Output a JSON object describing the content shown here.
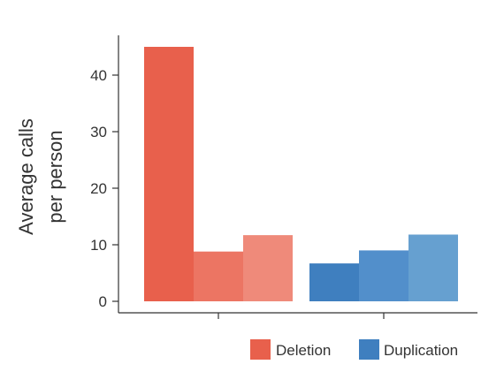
{
  "chart_data": {
    "type": "bar",
    "title": "",
    "xlabel": "",
    "ylabel_lines": [
      "Average calls",
      "per person"
    ],
    "ylim": [
      0,
      45
    ],
    "yticks": [
      0,
      10,
      20,
      30,
      40
    ],
    "grid": false,
    "legend_position": "bottom-right",
    "groups": [
      {
        "name": "Deletion",
        "tick_label": "",
        "values": [
          45,
          8.8,
          11.7
        ],
        "colors": [
          "#e8604c",
          "#ec7563",
          "#ef8a7a"
        ]
      },
      {
        "name": "Duplication",
        "tick_label": "",
        "values": [
          6.7,
          9.0,
          11.8
        ],
        "colors": [
          "#3f7fbf",
          "#528fcb",
          "#66a0d0"
        ]
      }
    ],
    "legend": [
      {
        "label": "Deletion",
        "color": "#e8604c"
      },
      {
        "label": "Duplication",
        "color": "#3f7fbf"
      }
    ]
  }
}
